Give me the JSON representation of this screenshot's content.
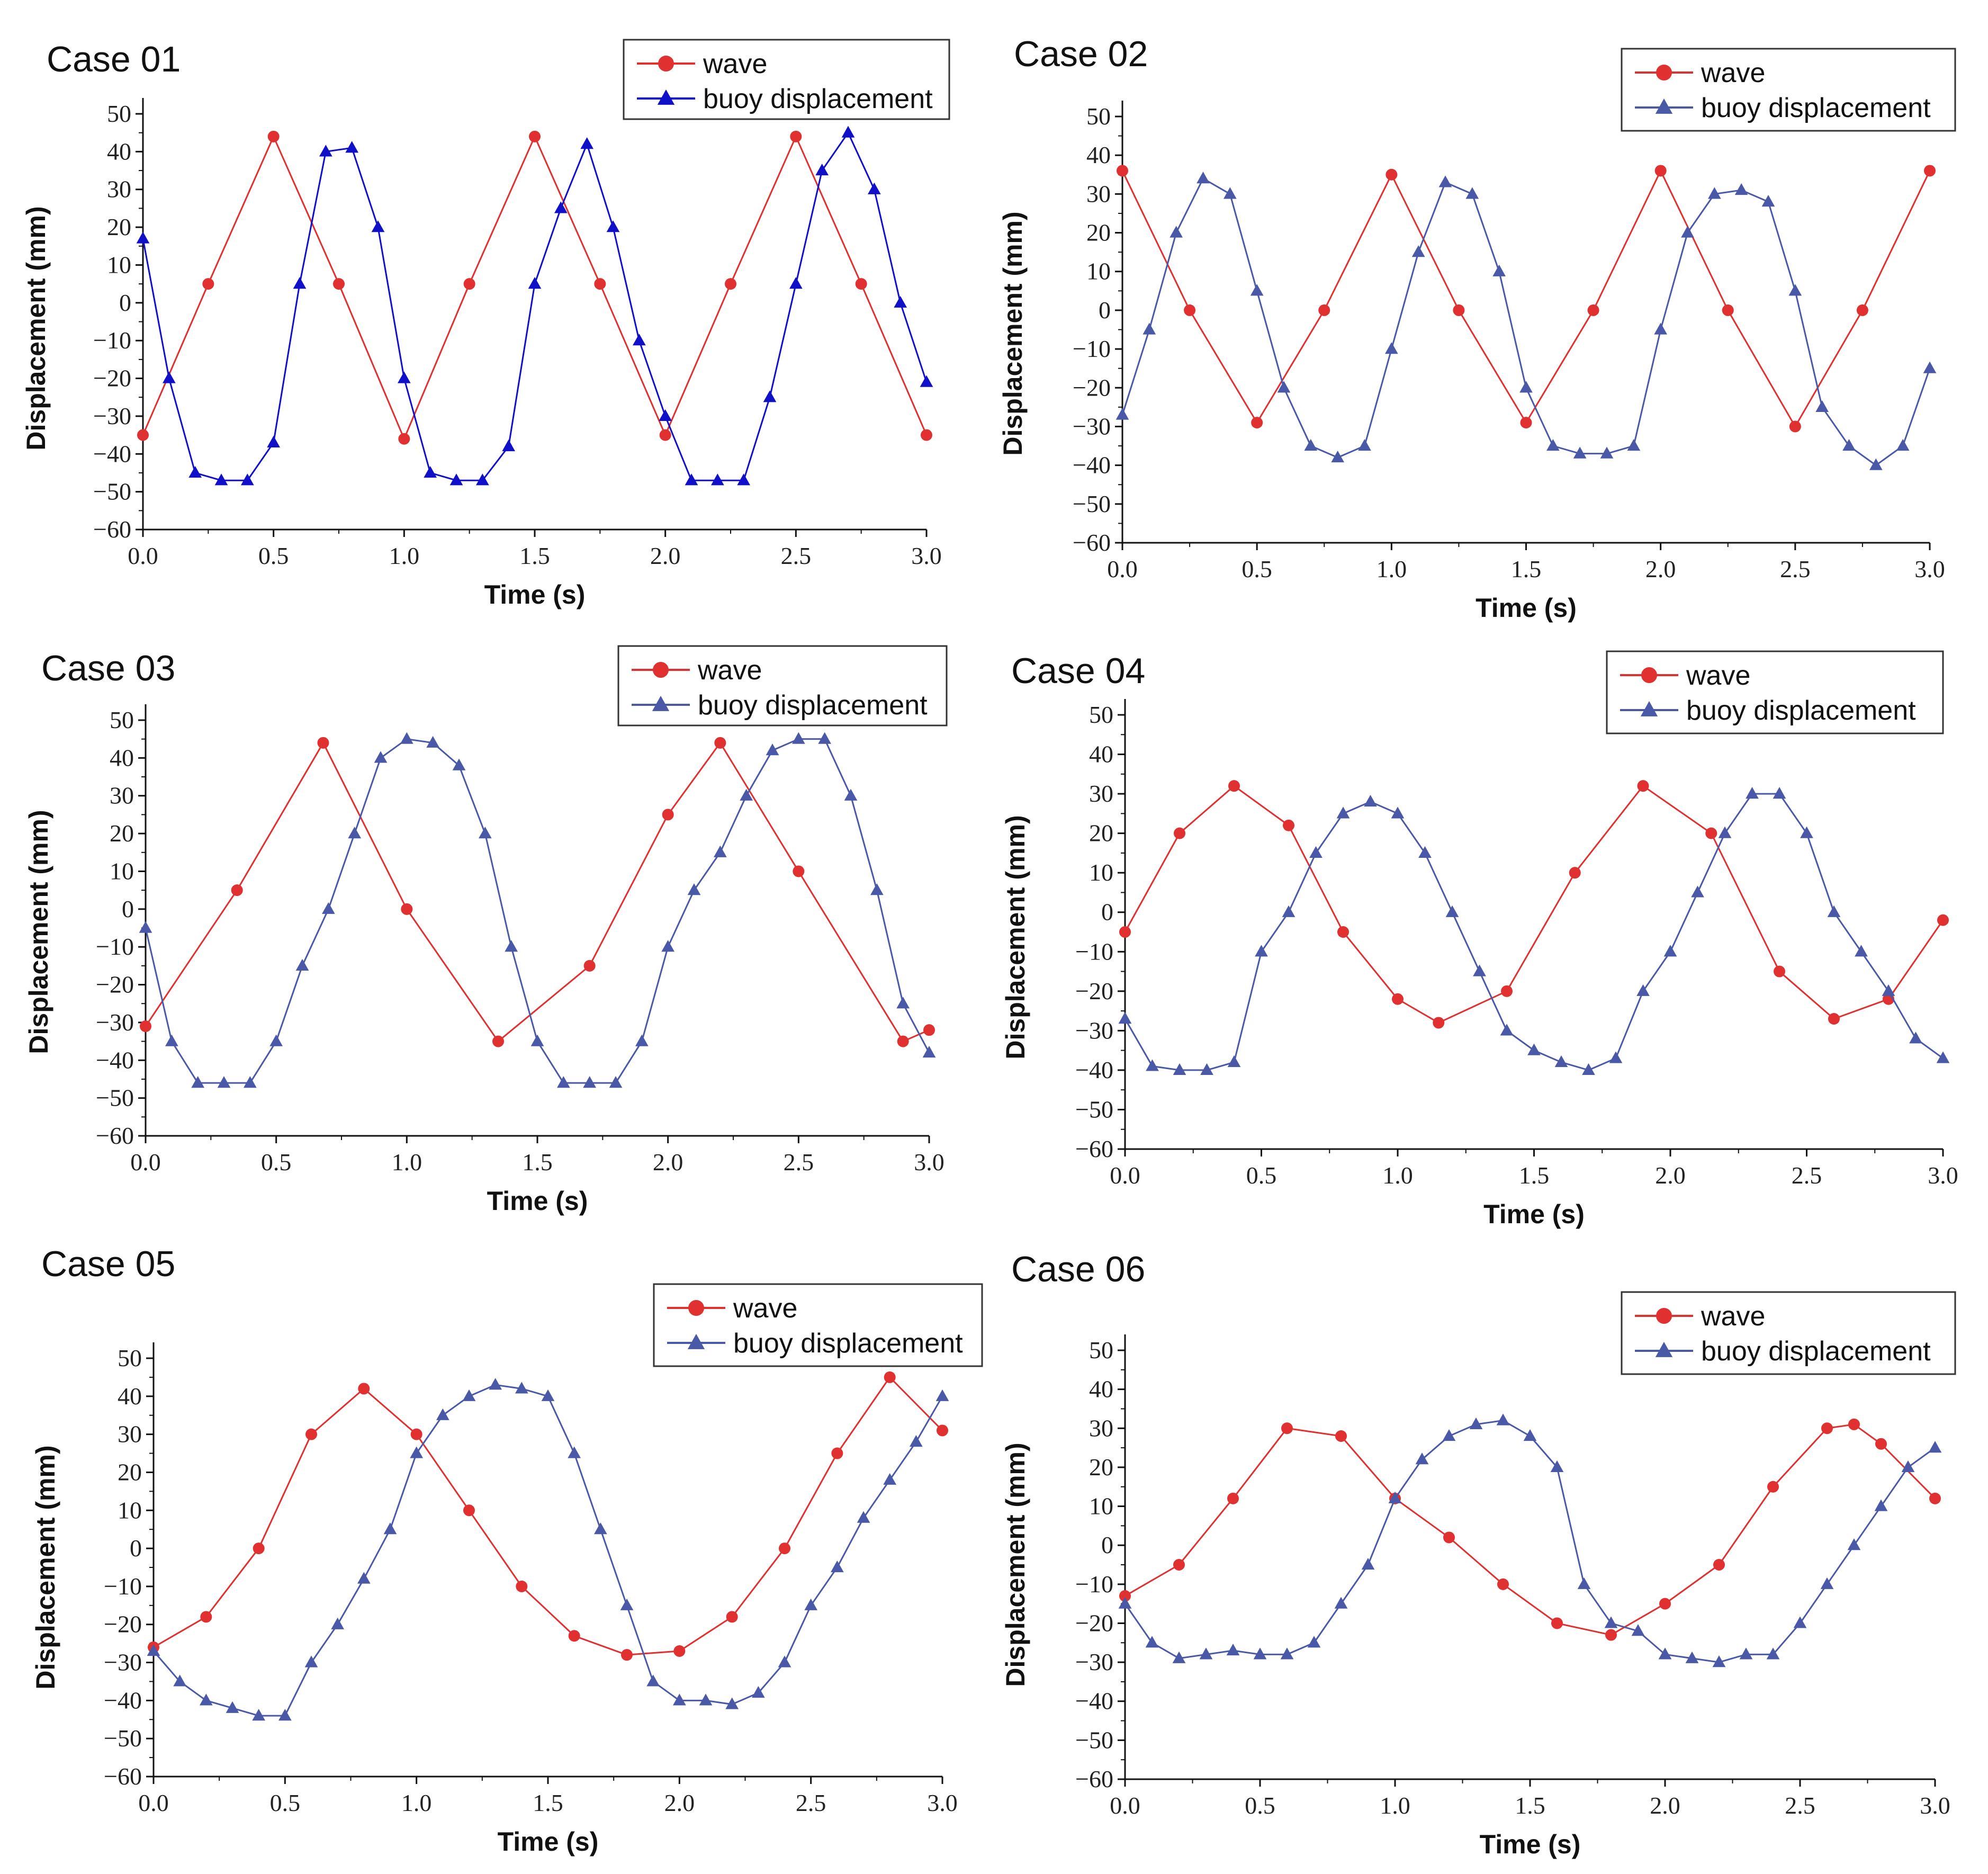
{
  "colors": {
    "wave": "#e03030",
    "buoy_case01": "#1010c8",
    "buoy_other": "#4a58a8"
  },
  "chart_data": [
    {
      "type": "line",
      "title": "Case 01",
      "xlabel": "Time (s)",
      "ylabel": "Displacement (mm)",
      "xlim": [
        0.0,
        3.0
      ],
      "ylim": [
        -60,
        50
      ],
      "xticks": [
        "0.0",
        "0.5",
        "1.0",
        "1.5",
        "2.0",
        "2.5",
        "3.0"
      ],
      "yticks": [
        "-60",
        "-50",
        "-40",
        "-30",
        "-20",
        "-10",
        "0",
        "10",
        "20",
        "30",
        "40",
        "50"
      ],
      "legend": [
        "wave",
        "buoy displacement"
      ],
      "legend_position": "top-right",
      "series": [
        {
          "name": "wave",
          "marker": "circle",
          "x": [
            0.0,
            0.25,
            0.5,
            0.75,
            1.0,
            1.25,
            1.5,
            1.75,
            2.0,
            2.25,
            2.5,
            2.75,
            3.0
          ],
          "y": [
            -35,
            5,
            44,
            5,
            -36,
            5,
            44,
            5,
            -35,
            5,
            44,
            5,
            -35
          ]
        },
        {
          "name": "buoy displacement",
          "marker": "triangle",
          "x": [
            0.0,
            0.1,
            0.2,
            0.3,
            0.4,
            0.5,
            0.6,
            0.7,
            0.8,
            0.9,
            1.0,
            1.1,
            1.2,
            1.3,
            1.4,
            1.5,
            1.6,
            1.7,
            1.8,
            1.9,
            2.0,
            2.1,
            2.2,
            2.3,
            2.4,
            2.5,
            2.6,
            2.7,
            2.8,
            2.9,
            3.0
          ],
          "y": [
            17,
            -20,
            -45,
            -47,
            -47,
            -37,
            5,
            40,
            41,
            20,
            -20,
            -45,
            -47,
            -47,
            -38,
            5,
            25,
            42,
            20,
            -10,
            -30,
            -47,
            -47,
            -47,
            -25,
            5,
            35,
            45,
            30,
            0,
            -21
          ]
        }
      ]
    },
    {
      "type": "line",
      "title": "Case 02",
      "xlabel": "Time (s)",
      "ylabel": "Displacement (mm)",
      "xlim": [
        0.0,
        3.0
      ],
      "ylim": [
        -60,
        50
      ],
      "xticks": [
        "0.0",
        "0.5",
        "1.0",
        "1.5",
        "2.0",
        "2.5",
        "3.0"
      ],
      "yticks": [
        "-60",
        "-50",
        "-40",
        "-30",
        "-20",
        "-10",
        "0",
        "10",
        "20",
        "30",
        "40",
        "50"
      ],
      "legend": [
        "wave",
        "buoy displacement"
      ],
      "legend_position": "top-right",
      "series": [
        {
          "name": "wave",
          "marker": "circle",
          "x": [
            0.0,
            0.25,
            0.5,
            0.75,
            1.0,
            1.25,
            1.5,
            1.75,
            2.0,
            2.25,
            2.5,
            2.75,
            3.0
          ],
          "y": [
            36,
            0,
            -29,
            0,
            35,
            0,
            -29,
            0,
            36,
            0,
            -30,
            0,
            36
          ]
        },
        {
          "name": "buoy displacement",
          "marker": "triangle",
          "x": [
            0.0,
            0.1,
            0.2,
            0.3,
            0.4,
            0.5,
            0.6,
            0.7,
            0.8,
            0.9,
            1.0,
            1.1,
            1.2,
            1.3,
            1.4,
            1.5,
            1.6,
            1.7,
            1.8,
            1.9,
            2.0,
            2.1,
            2.2,
            2.3,
            2.4,
            2.5,
            2.6,
            2.7,
            2.8,
            2.9,
            3.0
          ],
          "y": [
            -27,
            -5,
            20,
            34,
            30,
            5,
            -20,
            -35,
            -38,
            -35,
            -10,
            15,
            33,
            30,
            10,
            -20,
            -35,
            -37,
            -37,
            -35,
            -5,
            20,
            30,
            31,
            28,
            5,
            -25,
            -35,
            -40,
            -35,
            -15
          ]
        }
      ]
    },
    {
      "type": "line",
      "title": "Case 03",
      "xlabel": "Time (s)",
      "ylabel": "Displacement (mm)",
      "xlim": [
        0.0,
        3.0
      ],
      "ylim": [
        -60,
        50
      ],
      "xticks": [
        "0.0",
        "0.5",
        "1.0",
        "1.5",
        "2.0",
        "2.5",
        "3.0"
      ],
      "yticks": [
        "-60",
        "-50",
        "-40",
        "-30",
        "-20",
        "-10",
        "0",
        "10",
        "20",
        "30",
        "40",
        "50"
      ],
      "legend": [
        "wave",
        "buoy displacement"
      ],
      "legend_position": "top-right",
      "series": [
        {
          "name": "wave",
          "marker": "circle",
          "x": [
            0.0,
            0.35,
            0.68,
            1.0,
            1.35,
            1.7,
            2.0,
            2.2,
            2.5,
            2.9,
            3.0
          ],
          "y": [
            -31,
            5,
            44,
            0,
            -35,
            -15,
            25,
            44,
            10,
            -35,
            -32
          ]
        },
        {
          "name": "buoy displacement",
          "marker": "triangle",
          "x": [
            0.0,
            0.1,
            0.2,
            0.3,
            0.4,
            0.5,
            0.6,
            0.7,
            0.8,
            0.9,
            1.0,
            1.1,
            1.2,
            1.3,
            1.4,
            1.5,
            1.6,
            1.7,
            1.8,
            1.9,
            2.0,
            2.1,
            2.2,
            2.3,
            2.4,
            2.5,
            2.6,
            2.7,
            2.8,
            2.9,
            3.0
          ],
          "y": [
            -5,
            -35,
            -46,
            -46,
            -46,
            -35,
            -15,
            0,
            20,
            40,
            45,
            44,
            38,
            20,
            -10,
            -35,
            -46,
            -46,
            -46,
            -35,
            -10,
            5,
            15,
            30,
            42,
            45,
            45,
            30,
            5,
            -25,
            -38
          ]
        }
      ]
    },
    {
      "type": "line",
      "title": "Case 04",
      "xlabel": "Time (s)",
      "ylabel": "Displacement (mm)",
      "xlim": [
        0.0,
        3.0
      ],
      "ylim": [
        -60,
        50
      ],
      "xticks": [
        "0.0",
        "0.5",
        "1.0",
        "1.5",
        "2.0",
        "2.5",
        "3.0"
      ],
      "yticks": [
        "-60",
        "-50",
        "-40",
        "-30",
        "-20",
        "-10",
        "0",
        "10",
        "20",
        "30",
        "40",
        "50"
      ],
      "legend": [
        "wave",
        "buoy displacement"
      ],
      "legend_position": "top-right",
      "series": [
        {
          "name": "wave",
          "marker": "circle",
          "x": [
            0.0,
            0.2,
            0.4,
            0.6,
            0.8,
            1.0,
            1.15,
            1.4,
            1.65,
            1.9,
            2.15,
            2.4,
            2.6,
            2.8,
            3.0
          ],
          "y": [
            -5,
            20,
            32,
            22,
            -5,
            -22,
            -28,
            -20,
            10,
            32,
            20,
            -15,
            -27,
            -22,
            -2
          ]
        },
        {
          "name": "buoy displacement",
          "marker": "triangle",
          "x": [
            0.0,
            0.1,
            0.2,
            0.3,
            0.4,
            0.5,
            0.6,
            0.7,
            0.8,
            0.9,
            1.0,
            1.1,
            1.2,
            1.3,
            1.4,
            1.5,
            1.6,
            1.7,
            1.8,
            1.9,
            2.0,
            2.1,
            2.2,
            2.3,
            2.4,
            2.5,
            2.6,
            2.7,
            2.8,
            2.9,
            3.0
          ],
          "y": [
            -27,
            -39,
            -40,
            -40,
            -38,
            -10,
            0,
            15,
            25,
            28,
            25,
            15,
            0,
            -15,
            -30,
            -35,
            -38,
            -40,
            -37,
            -20,
            -10,
            5,
            20,
            30,
            30,
            20,
            0,
            -10,
            -20,
            -32,
            -37
          ]
        }
      ]
    },
    {
      "type": "line",
      "title": "Case 05",
      "xlabel": "Time (s)",
      "ylabel": "Displacement (mm)",
      "xlim": [
        0.0,
        3.0
      ],
      "ylim": [
        -60,
        50
      ],
      "xticks": [
        "0.0",
        "0.5",
        "1.0",
        "1.5",
        "2.0",
        "2.5",
        "3.0"
      ],
      "yticks": [
        "-60",
        "-50",
        "-40",
        "-30",
        "-20",
        "-10",
        "0",
        "10",
        "20",
        "30",
        "40",
        "50"
      ],
      "legend": [
        "wave",
        "buoy displacement"
      ],
      "legend_position": "top-right",
      "series": [
        {
          "name": "wave",
          "marker": "circle",
          "x": [
            0.0,
            0.2,
            0.4,
            0.6,
            0.8,
            1.0,
            1.2,
            1.4,
            1.6,
            1.8,
            2.0,
            2.2,
            2.4,
            2.6,
            2.8,
            3.0
          ],
          "y": [
            -26,
            -18,
            0,
            30,
            42,
            30,
            10,
            -10,
            -23,
            -28,
            -27,
            -18,
            0,
            25,
            45,
            31
          ]
        },
        {
          "name": "buoy displacement",
          "marker": "triangle",
          "x": [
            0.0,
            0.1,
            0.2,
            0.3,
            0.4,
            0.5,
            0.6,
            0.7,
            0.8,
            0.9,
            1.0,
            1.1,
            1.2,
            1.3,
            1.4,
            1.5,
            1.6,
            1.7,
            1.8,
            1.9,
            2.0,
            2.1,
            2.2,
            2.3,
            2.4,
            2.5,
            2.6,
            2.7,
            2.8,
            2.9,
            3.0
          ],
          "y": [
            -27,
            -35,
            -40,
            -42,
            -44,
            -44,
            -30,
            -20,
            -8,
            5,
            25,
            35,
            40,
            43,
            42,
            40,
            25,
            5,
            -15,
            -35,
            -40,
            -40,
            -41,
            -38,
            -30,
            -15,
            -5,
            8,
            18,
            28,
            40
          ]
        }
      ]
    },
    {
      "type": "line",
      "title": "Case 06",
      "xlabel": "Time (s)",
      "ylabel": "Displacement (mm)",
      "xlim": [
        0.0,
        3.0
      ],
      "ylim": [
        -60,
        50
      ],
      "xticks": [
        "0.0",
        "0.5",
        "1.0",
        "1.5",
        "2.0",
        "2.5",
        "3.0"
      ],
      "yticks": [
        "-60",
        "-50",
        "-40",
        "-30",
        "-20",
        "-10",
        "0",
        "10",
        "20",
        "30",
        "40",
        "50"
      ],
      "legend": [
        "wave",
        "buoy displacement"
      ],
      "legend_position": "top-right",
      "series": [
        {
          "name": "wave",
          "marker": "circle",
          "x": [
            0.0,
            0.2,
            0.4,
            0.6,
            0.8,
            1.0,
            1.2,
            1.4,
            1.6,
            1.8,
            2.0,
            2.2,
            2.4,
            2.6,
            2.7,
            2.8,
            3.0
          ],
          "y": [
            -13,
            -5,
            12,
            30,
            28,
            12,
            2,
            -10,
            -20,
            -23,
            -15,
            -5,
            15,
            30,
            31,
            26,
            12
          ]
        },
        {
          "name": "buoy displacement",
          "marker": "triangle",
          "x": [
            0.0,
            0.1,
            0.2,
            0.3,
            0.4,
            0.5,
            0.6,
            0.7,
            0.8,
            0.9,
            1.0,
            1.1,
            1.2,
            1.3,
            1.4,
            1.5,
            1.6,
            1.7,
            1.8,
            1.9,
            2.0,
            2.1,
            2.2,
            2.3,
            2.4,
            2.5,
            2.6,
            2.7,
            2.8,
            2.9,
            3.0
          ],
          "y": [
            -15,
            -25,
            -29,
            -28,
            -27,
            -28,
            -28,
            -25,
            -15,
            -5,
            12,
            22,
            28,
            31,
            32,
            28,
            20,
            -10,
            -20,
            -22,
            -28,
            -29,
            -30,
            -28,
            -28,
            -20,
            -10,
            0,
            10,
            20,
            25
          ]
        }
      ]
    }
  ]
}
